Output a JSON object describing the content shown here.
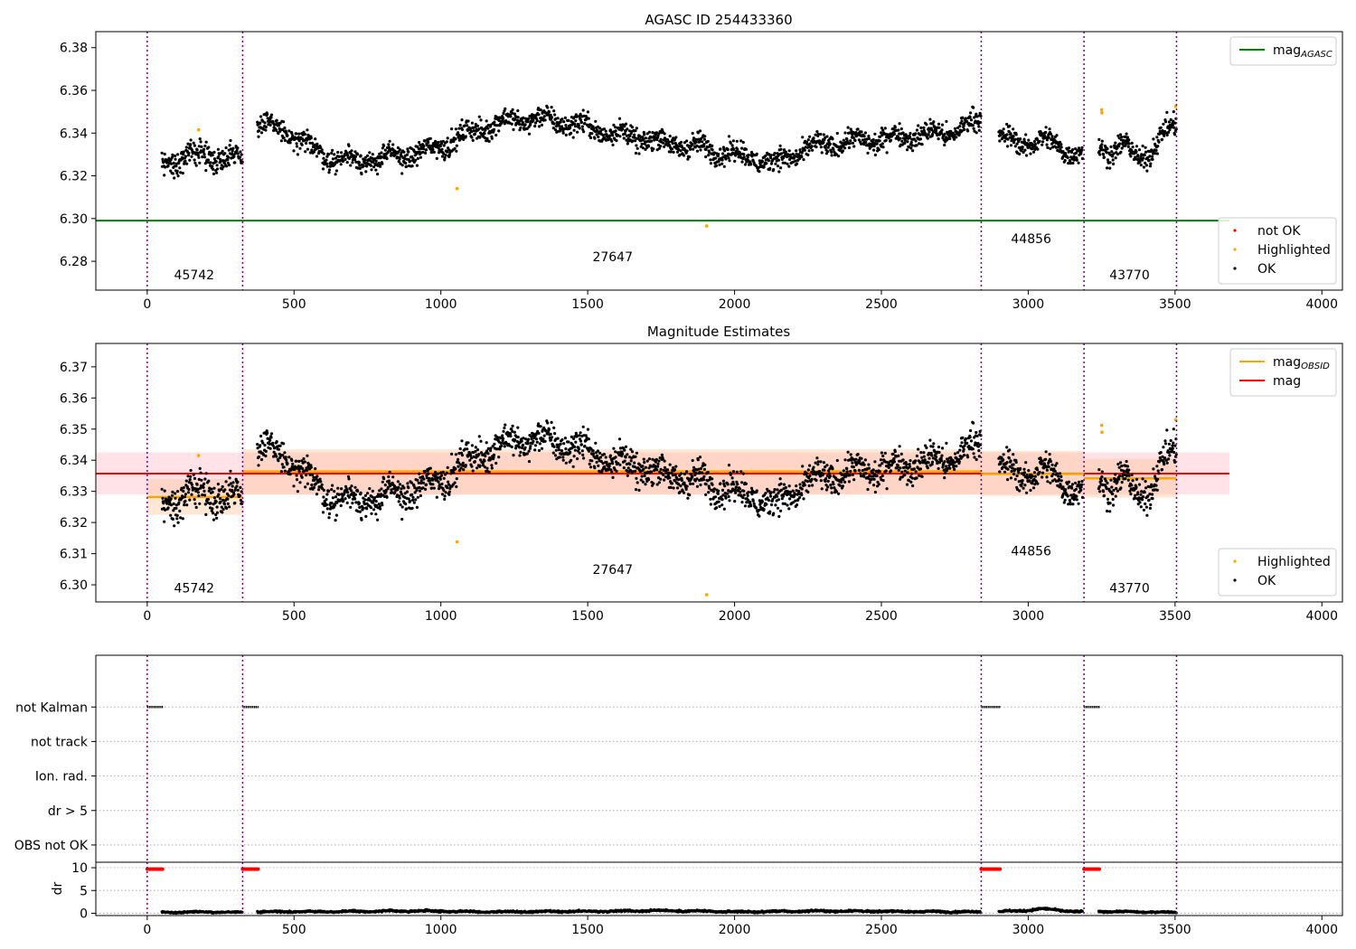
{
  "figure": {
    "colors": {
      "ok": "#000000",
      "highlighted": "#ffa500",
      "not_ok": "#ff0000",
      "mag_agasc": "#008000",
      "mag_obsid": "#ffa500",
      "mag": "#ff0000",
      "obs_boundary": "#800080",
      "mag_band": "#ffc0cb",
      "obsid_band": "#ffc8a0"
    }
  },
  "chart_data": [
    {
      "type": "scatter",
      "title": "AGASC ID 254433360",
      "xlabel": "",
      "ylabel": "",
      "xlim": [
        -175,
        4070
      ],
      "ylim": [
        6.2665,
        6.3875
      ],
      "xticks": [
        0,
        500,
        1000,
        1500,
        2000,
        2500,
        3000,
        3500,
        4000
      ],
      "yticks": [
        6.28,
        6.3,
        6.32,
        6.34,
        6.36,
        6.38
      ],
      "ytick_format": 2,
      "grid": false,
      "legends": [
        {
          "placement": "top-right",
          "entries": [
            {
              "label": "mag",
              "sub": "AGASC",
              "kind": "line",
              "color": "#008000"
            }
          ]
        },
        {
          "placement": "bottom-right",
          "entries": [
            {
              "label": "not OK",
              "kind": "dot",
              "color": "#ff0000"
            },
            {
              "label": "Highlighted",
              "kind": "dot",
              "color": "#ffa500"
            },
            {
              "label": "OK",
              "kind": "dot",
              "color": "#000000"
            }
          ]
        }
      ],
      "lines": [
        {
          "name": "mag_AGASC",
          "y": 6.299,
          "x": [
            -175,
            3685
          ],
          "color": "#008000",
          "width": 2
        }
      ],
      "bands": [],
      "obs_boundaries": [
        0,
        325,
        2840,
        3190,
        3505
      ],
      "obsid_labels": [
        {
          "text": "45742",
          "x": 160,
          "y": 6.2715
        },
        {
          "text": "27647",
          "x": 1585,
          "y": 6.28
        },
        {
          "text": "44856",
          "x": 3010,
          "y": 6.2885
        },
        {
          "text": "43770",
          "x": 3345,
          "y": 6.2715
        }
      ],
      "series": [
        {
          "name": "OK",
          "color": "#000000",
          "segments": [
            {
              "x": [
                50,
                325
              ],
              "trend": [
                6.326,
                6.33,
                6.328
              ],
              "spread": 0.005
            },
            {
              "x": [
                375,
                2840
              ],
              "trend": [
                6.345,
                6.339,
                6.329,
                6.327,
                6.329,
                6.332,
                6.339,
                6.345,
                6.347,
                6.345,
                6.341,
                6.338,
                6.335,
                6.333,
                6.33,
                6.326,
                6.333,
                6.336,
                6.337,
                6.339,
                6.34,
                6.346
              ],
              "spread": 0.0045
            },
            {
              "x": [
                2900,
                3185
              ],
              "trend": [
                6.338,
                6.335,
                6.337,
                6.333,
                6.33
              ],
              "spread": 0.0045
            },
            {
              "x": [
                3240,
                3505
              ],
              "trend": [
                6.335,
                6.331,
                6.334,
                6.329,
                6.331,
                6.339,
                6.345
              ],
              "spread": 0.0045
            }
          ]
        },
        {
          "name": "Highlighted",
          "color": "#ffa500",
          "points": [
            [
              175,
              6.3415
            ],
            [
              1055,
              6.314
            ],
            [
              1905,
              6.2965
            ],
            [
              3250,
              6.351
            ],
            [
              3251,
              6.3495
            ],
            [
              3502,
              6.3525
            ]
          ]
        }
      ]
    },
    {
      "type": "scatter",
      "title": "Magnitude Estimates",
      "xlabel": "",
      "ylabel": "",
      "xlim": [
        -175,
        4070
      ],
      "ylim": [
        6.2945,
        6.3775
      ],
      "xticks": [
        0,
        500,
        1000,
        1500,
        2000,
        2500,
        3000,
        3500,
        4000
      ],
      "yticks": [
        6.3,
        6.31,
        6.32,
        6.33,
        6.34,
        6.35,
        6.36,
        6.37
      ],
      "ytick_format": 2,
      "grid": false,
      "legends": [
        {
          "placement": "top-right",
          "entries": [
            {
              "label": "mag",
              "sub": "OBSID",
              "kind": "line",
              "color": "#ffa500"
            },
            {
              "label": "mag",
              "kind": "line",
              "color": "#ff0000"
            }
          ]
        },
        {
          "placement": "bottom-right",
          "entries": [
            {
              "label": "Highlighted",
              "kind": "dot",
              "color": "#ffa500"
            },
            {
              "label": "OK",
              "kind": "dot",
              "color": "#000000"
            }
          ]
        }
      ],
      "bands": [
        {
          "x": [
            -175,
            3685
          ],
          "y": [
            6.329,
            6.3425
          ],
          "color": "#ffc0cb",
          "opacity": 0.45
        },
        {
          "x": [
            0,
            325
          ],
          "y": [
            6.3225,
            6.334
          ],
          "color": "#ffb98a",
          "opacity": 0.35
        },
        {
          "x": [
            325,
            2840
          ],
          "y": [
            6.329,
            6.3435
          ],
          "color": "#ffb98a",
          "opacity": 0.35
        },
        {
          "x": [
            2840,
            3190
          ],
          "y": [
            6.3285,
            6.343
          ],
          "color": "#ffb98a",
          "opacity": 0.35
        },
        {
          "x": [
            3190,
            3505
          ],
          "y": [
            6.328,
            6.3405
          ],
          "color": "#ffb98a",
          "opacity": 0.35
        }
      ],
      "lines": [
        {
          "name": "mag",
          "y": 6.3357,
          "x": [
            -175,
            3685
          ],
          "color": "#ff0000",
          "width": 2
        },
        {
          "name": "mag_OBSID",
          "y": 6.3282,
          "x": [
            0,
            325
          ],
          "color": "#ffa500",
          "width": 2.5
        },
        {
          "name": "mag_OBSID",
          "y": 6.3364,
          "x": [
            325,
            2840
          ],
          "color": "#ffa500",
          "width": 2.5
        },
        {
          "name": "mag_OBSID",
          "y": 6.3356,
          "x": [
            2840,
            3190
          ],
          "color": "#ffa500",
          "width": 2.5
        },
        {
          "name": "mag_OBSID",
          "y": 6.3342,
          "x": [
            3190,
            3505
          ],
          "color": "#ffa500",
          "width": 2.5
        }
      ],
      "obs_boundaries": [
        0,
        325,
        2840,
        3190,
        3505
      ],
      "obsid_labels": [
        {
          "text": "45742",
          "x": 160,
          "y": 6.2975
        },
        {
          "text": "27647",
          "x": 1585,
          "y": 6.3035
        },
        {
          "text": "44856",
          "x": 3010,
          "y": 6.3095
        },
        {
          "text": "43770",
          "x": 3345,
          "y": 6.2975
        }
      ],
      "series": [
        {
          "name": "OK",
          "color": "#000000",
          "segments": [
            {
              "x": [
                50,
                325
              ],
              "trend": [
                6.326,
                6.33,
                6.328
              ],
              "spread": 0.005
            },
            {
              "x": [
                375,
                2840
              ],
              "trend": [
                6.345,
                6.339,
                6.329,
                6.327,
                6.329,
                6.332,
                6.339,
                6.345,
                6.347,
                6.345,
                6.341,
                6.338,
                6.335,
                6.333,
                6.33,
                6.326,
                6.333,
                6.336,
                6.337,
                6.339,
                6.34,
                6.346
              ],
              "spread": 0.0045
            },
            {
              "x": [
                2900,
                3185
              ],
              "trend": [
                6.338,
                6.335,
                6.337,
                6.333,
                6.33
              ],
              "spread": 0.0045
            },
            {
              "x": [
                3240,
                3505
              ],
              "trend": [
                6.335,
                6.331,
                6.334,
                6.329,
                6.331,
                6.339,
                6.345
              ],
              "spread": 0.0045
            }
          ]
        },
        {
          "name": "Highlighted",
          "color": "#ffa500",
          "points": [
            [
              175,
              6.3415
            ],
            [
              1055,
              6.3138
            ],
            [
              1905,
              6.2968
            ],
            [
              3250,
              6.3512
            ],
            [
              3251,
              6.349
            ],
            [
              3502,
              6.353
            ]
          ]
        }
      ]
    },
    {
      "type": "scatter",
      "title": "",
      "xlabel": "",
      "ylabel": "",
      "xlim": [
        -175,
        4070
      ],
      "ylim": [
        -0.5,
        5.5
      ],
      "xticks": [],
      "yticks": [],
      "grid": true,
      "categories": [
        "OBS not OK",
        "dr > 5",
        "Ion. rad.",
        "not track",
        "not Kalman"
      ],
      "obs_boundaries": [
        0,
        325,
        2840,
        3190,
        3505
      ],
      "flag_runs": [
        {
          "category": "not Kalman",
          "x": [
            0,
            55
          ]
        },
        {
          "category": "not Kalman",
          "x": [
            325,
            380
          ]
        },
        {
          "category": "not Kalman",
          "x": [
            2840,
            2905
          ]
        },
        {
          "category": "not Kalman",
          "x": [
            3190,
            3245
          ]
        }
      ]
    },
    {
      "type": "scatter",
      "title": "",
      "xlabel": "",
      "ylabel": "dr",
      "xlim": [
        -175,
        4070
      ],
      "ylim": [
        -0.5,
        11.2
      ],
      "xticks": [
        0,
        500,
        1000,
        1500,
        2000,
        2500,
        3000,
        3500,
        4000
      ],
      "yticks": [
        0,
        5,
        10
      ],
      "ytick_format": 0,
      "grid": true,
      "obs_boundaries": [
        0,
        325,
        2840,
        3190,
        3505
      ],
      "not_ok_runs": [
        {
          "x": [
            0,
            55
          ],
          "y": 9.7
        },
        {
          "x": [
            325,
            380
          ],
          "y": 9.7
        },
        {
          "x": [
            2840,
            2905
          ],
          "y": 9.7
        },
        {
          "x": [
            3190,
            3245
          ],
          "y": 9.7
        }
      ],
      "series": [
        {
          "name": "OK",
          "color": "#000000",
          "segments": [
            {
              "x": [
                50,
                325
              ],
              "trend": [
                0.2,
                0.3,
                0.2
              ],
              "spread": 0.15
            },
            {
              "x": [
                375,
                2840
              ],
              "trend": [
                0.3,
                0.4,
                0.5,
                0.3,
                0.4,
                0.6,
                0.3,
                0.5,
                0.4,
                0.3
              ],
              "spread": 0.18
            },
            {
              "x": [
                2900,
                3185
              ],
              "trend": [
                0.4,
                0.5,
                1.0,
                0.6,
                0.3
              ],
              "spread": 0.2
            },
            {
              "x": [
                3240,
                3505
              ],
              "trend": [
                0.4,
                0.3,
                0.2
              ],
              "spread": 0.15
            }
          ]
        }
      ]
    }
  ]
}
